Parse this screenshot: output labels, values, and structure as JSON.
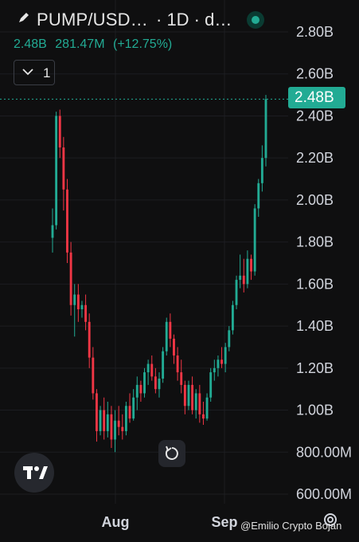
{
  "header": {
    "symbol": "PUMP/USD…",
    "interval": "· 1D · d…",
    "stats": [
      "2.48B",
      "281.47M",
      "(+12.75%)"
    ],
    "collapse_count": "1",
    "icons": [
      "pencil-icon",
      "live-status-icon",
      "chevron-down-icon"
    ]
  },
  "price_tag": "2.48B",
  "watermark": "@Emilio Crypto Bojan",
  "colors": {
    "up": "#22ab94",
    "down": "#f23645",
    "background": "#0f0f10"
  },
  "chart_data": {
    "type": "candlestick",
    "title": "",
    "xlabel": "",
    "ylabel": "",
    "y_tick_labels": [
      "2.80B",
      "2.60B",
      "2.40B",
      "2.20B",
      "2.00B",
      "1.80B",
      "1.60B",
      "1.40B",
      "1.20B",
      "1.00B",
      "800.00M",
      "600.00M"
    ],
    "y_ticks": [
      2.8,
      2.6,
      2.4,
      2.2,
      2.0,
      1.8,
      1.6,
      1.4,
      1.2,
      1.0,
      0.8,
      0.6
    ],
    "x_tick_labels": [
      "Aug",
      "Sep"
    ],
    "ylim": [
      0.54,
      2.96
    ],
    "y_unit": "B",
    "last_price": 2.48,
    "grid": true,
    "legend": "none",
    "candles": [
      [
        1.82,
        1.96,
        1.75,
        1.88
      ],
      [
        1.88,
        2.42,
        1.86,
        2.4
      ],
      [
        2.4,
        2.43,
        2.2,
        2.25
      ],
      [
        2.25,
        2.3,
        1.95,
        2.05
      ],
      [
        2.05,
        2.1,
        1.7,
        1.75
      ],
      [
        1.75,
        1.8,
        1.45,
        1.5
      ],
      [
        1.5,
        1.6,
        1.35,
        1.55
      ],
      [
        1.55,
        1.6,
        1.42,
        1.48
      ],
      [
        1.48,
        1.52,
        1.44,
        1.5
      ],
      [
        1.5,
        1.55,
        1.38,
        1.42
      ],
      [
        1.42,
        1.46,
        1.2,
        1.25
      ],
      [
        1.25,
        1.3,
        1.05,
        1.08
      ],
      [
        1.08,
        1.1,
        0.85,
        0.9
      ],
      [
        0.9,
        1.02,
        0.88,
        1.0
      ],
      [
        1.0,
        1.06,
        0.86,
        0.9
      ],
      [
        0.9,
        1.04,
        0.87,
        0.98
      ],
      [
        0.98,
        1.02,
        0.82,
        0.86
      ],
      [
        0.86,
        1.0,
        0.8,
        0.95
      ],
      [
        0.95,
        1.02,
        0.88,
        0.92
      ],
      [
        0.92,
        0.98,
        0.86,
        0.9
      ],
      [
        0.9,
        1.04,
        0.88,
        1.02
      ],
      [
        1.02,
        1.08,
        0.94,
        0.96
      ],
      [
        0.96,
        1.1,
        0.95,
        1.06
      ],
      [
        1.06,
        1.16,
        1.0,
        1.12
      ],
      [
        1.12,
        1.14,
        1.04,
        1.08
      ],
      [
        1.08,
        1.2,
        1.06,
        1.18
      ],
      [
        1.18,
        1.24,
        1.12,
        1.22
      ],
      [
        1.22,
        1.26,
        1.14,
        1.16
      ],
      [
        1.16,
        1.2,
        1.08,
        1.1
      ],
      [
        1.1,
        1.18,
        1.06,
        1.15
      ],
      [
        1.15,
        1.3,
        1.13,
        1.28
      ],
      [
        1.28,
        1.44,
        1.26,
        1.42
      ],
      [
        1.42,
        1.46,
        1.3,
        1.34
      ],
      [
        1.34,
        1.36,
        1.22,
        1.26
      ],
      [
        1.26,
        1.3,
        1.14,
        1.18
      ],
      [
        1.18,
        1.24,
        1.08,
        1.12
      ],
      [
        1.12,
        1.14,
        0.98,
        1.02
      ],
      [
        1.02,
        1.14,
        1.0,
        1.12
      ],
      [
        1.12,
        1.16,
        0.98,
        1.0
      ],
      [
        1.0,
        1.1,
        0.96,
        1.08
      ],
      [
        1.08,
        1.12,
        0.94,
        0.98
      ],
      [
        0.98,
        1.04,
        0.93,
        0.96
      ],
      [
        0.96,
        1.08,
        0.95,
        1.06
      ],
      [
        1.06,
        1.2,
        1.04,
        1.18
      ],
      [
        1.18,
        1.24,
        1.14,
        1.2
      ],
      [
        1.2,
        1.26,
        1.16,
        1.24
      ],
      [
        1.24,
        1.3,
        1.2,
        1.22
      ],
      [
        1.22,
        1.32,
        1.18,
        1.3
      ],
      [
        1.3,
        1.4,
        1.28,
        1.38
      ],
      [
        1.38,
        1.52,
        1.36,
        1.5
      ],
      [
        1.5,
        1.64,
        1.48,
        1.62
      ],
      [
        1.62,
        1.74,
        1.58,
        1.64
      ],
      [
        1.64,
        1.72,
        1.56,
        1.6
      ],
      [
        1.6,
        1.76,
        1.58,
        1.72
      ],
      [
        1.72,
        1.74,
        1.62,
        1.66
      ],
      [
        1.66,
        1.98,
        1.64,
        1.96
      ],
      [
        1.96,
        2.1,
        1.92,
        2.08
      ],
      [
        2.08,
        2.26,
        2.04,
        2.2
      ],
      [
        2.2,
        2.5,
        2.16,
        2.48
      ]
    ]
  }
}
